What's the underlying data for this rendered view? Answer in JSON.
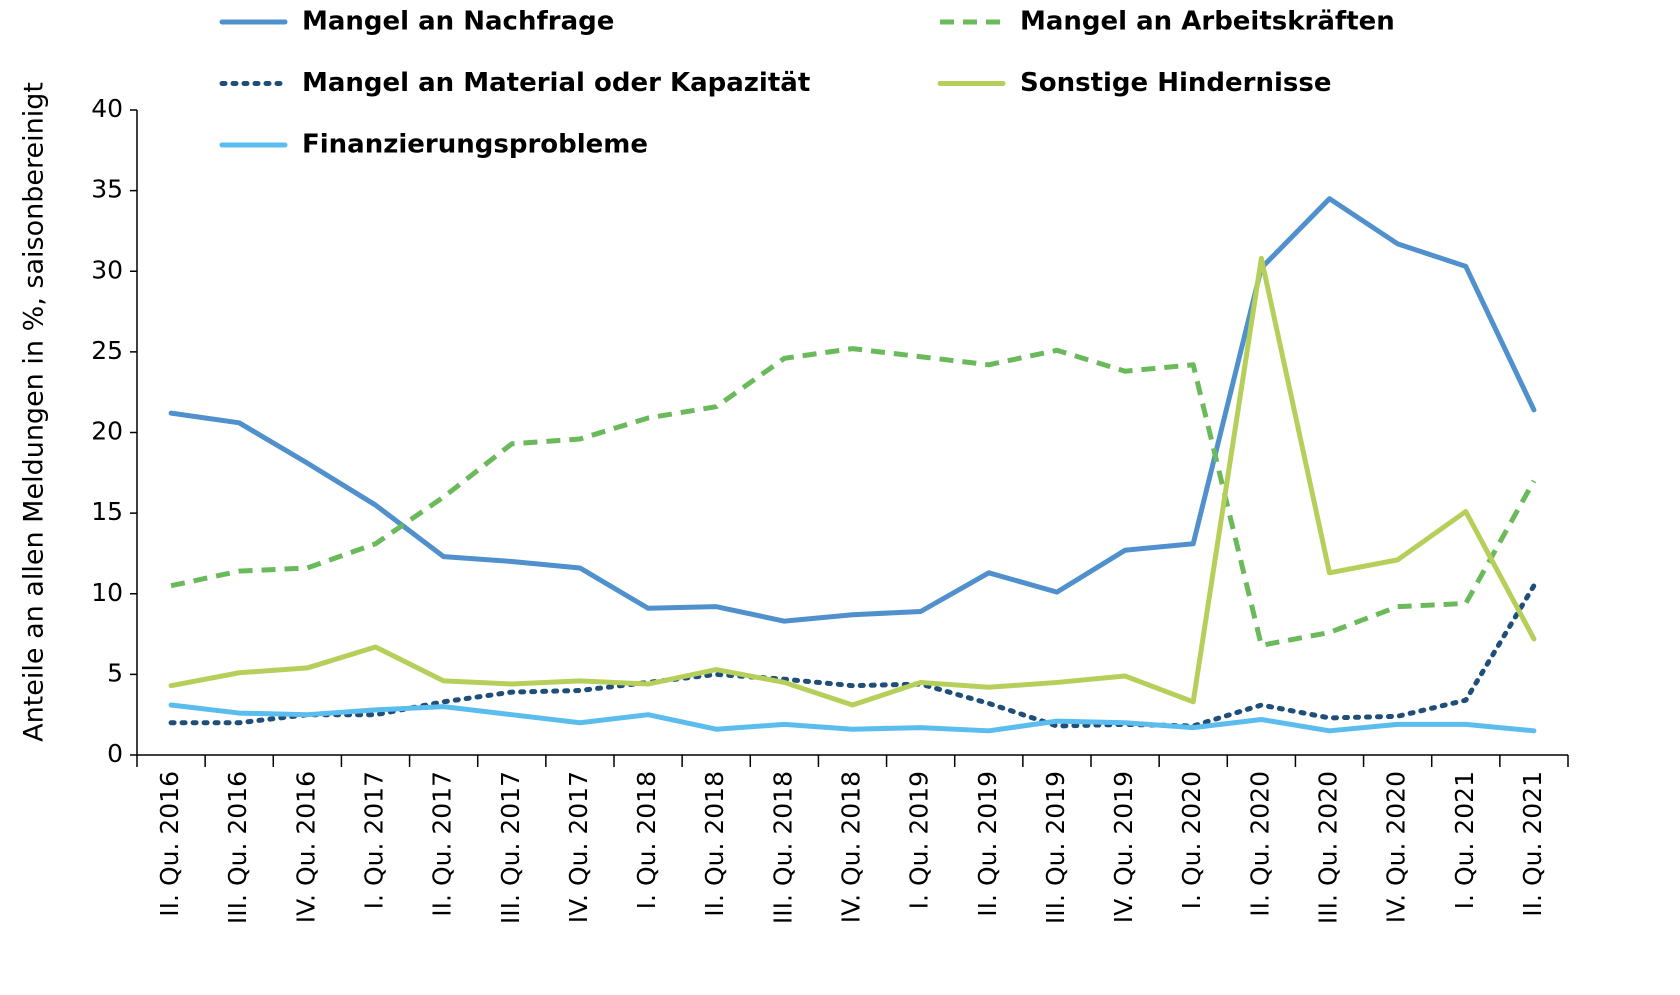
{
  "chart_data": {
    "type": "line",
    "y_label": "Anteile an allen Meldungen in %, saisonbereinigt",
    "categories": [
      "II. Qu. 2016",
      "III. Qu. 2016",
      "IV. Qu. 2016",
      "I. Qu. 2017",
      "II. Qu. 2017",
      "III. Qu. 2017",
      "IV. Qu. 2017",
      "I. Qu. 2018",
      "II. Qu. 2018",
      "III. Qu. 2018",
      "IV. Qu. 2018",
      "I. Qu. 2019",
      "II. Qu. 2019",
      "III. Qu. 2019",
      "IV. Qu. 2019",
      "I. Qu. 2020",
      "II. Qu. 2020",
      "III. Qu. 2020",
      "IV. Qu. 2020",
      "I. Qu. 2021",
      "II. Qu. 2021"
    ],
    "ylim": [
      0,
      40
    ],
    "yticks": [
      0,
      5,
      10,
      15,
      20,
      25,
      30,
      35,
      40
    ],
    "series": [
      {
        "name": "Mangel an Nachfrage",
        "color": "#4f90cd",
        "style": "solid",
        "values": [
          21.2,
          20.6,
          18.1,
          15.5,
          12.3,
          12.0,
          11.6,
          9.1,
          9.2,
          8.3,
          8.7,
          8.9,
          11.3,
          10.1,
          12.7,
          13.1,
          30.2,
          34.5,
          31.7,
          30.3,
          21.4
        ]
      },
      {
        "name": "Mangel an Arbeitskräften",
        "color": "#6ab95a",
        "style": "dashed",
        "values": [
          10.5,
          11.4,
          11.6,
          13.1,
          16.0,
          19.3,
          19.6,
          20.9,
          21.6,
          24.6,
          25.2,
          24.7,
          24.2,
          25.1,
          23.8,
          24.2,
          6.8,
          7.6,
          9.2,
          9.4,
          17.0
        ]
      },
      {
        "name": "Mangel an Material oder Kapazität",
        "color": "#1f4e79",
        "style": "dotted",
        "values": [
          2.0,
          2.0,
          2.5,
          2.5,
          3.3,
          3.9,
          4.0,
          4.5,
          5.0,
          4.7,
          4.3,
          4.4,
          3.2,
          1.8,
          1.9,
          1.8,
          3.1,
          2.3,
          2.4,
          3.4,
          10.5
        ]
      },
      {
        "name": "Sonstige Hindernisse",
        "color": "#b5cf5a",
        "style": "solid",
        "values": [
          4.3,
          5.1,
          5.4,
          6.7,
          4.6,
          4.4,
          4.6,
          4.4,
          5.3,
          4.5,
          3.1,
          4.5,
          4.2,
          4.5,
          4.9,
          3.3,
          30.8,
          11.3,
          12.1,
          15.1,
          7.2
        ]
      },
      {
        "name": "Finanzierungsprobleme",
        "color": "#5bbcee",
        "style": "solid",
        "values": [
          3.1,
          2.6,
          2.5,
          2.8,
          3.0,
          2.5,
          2.0,
          2.5,
          1.6,
          1.9,
          1.6,
          1.7,
          1.5,
          2.1,
          2.0,
          1.7,
          2.2,
          1.5,
          1.9,
          1.9,
          1.5
        ]
      }
    ]
  }
}
